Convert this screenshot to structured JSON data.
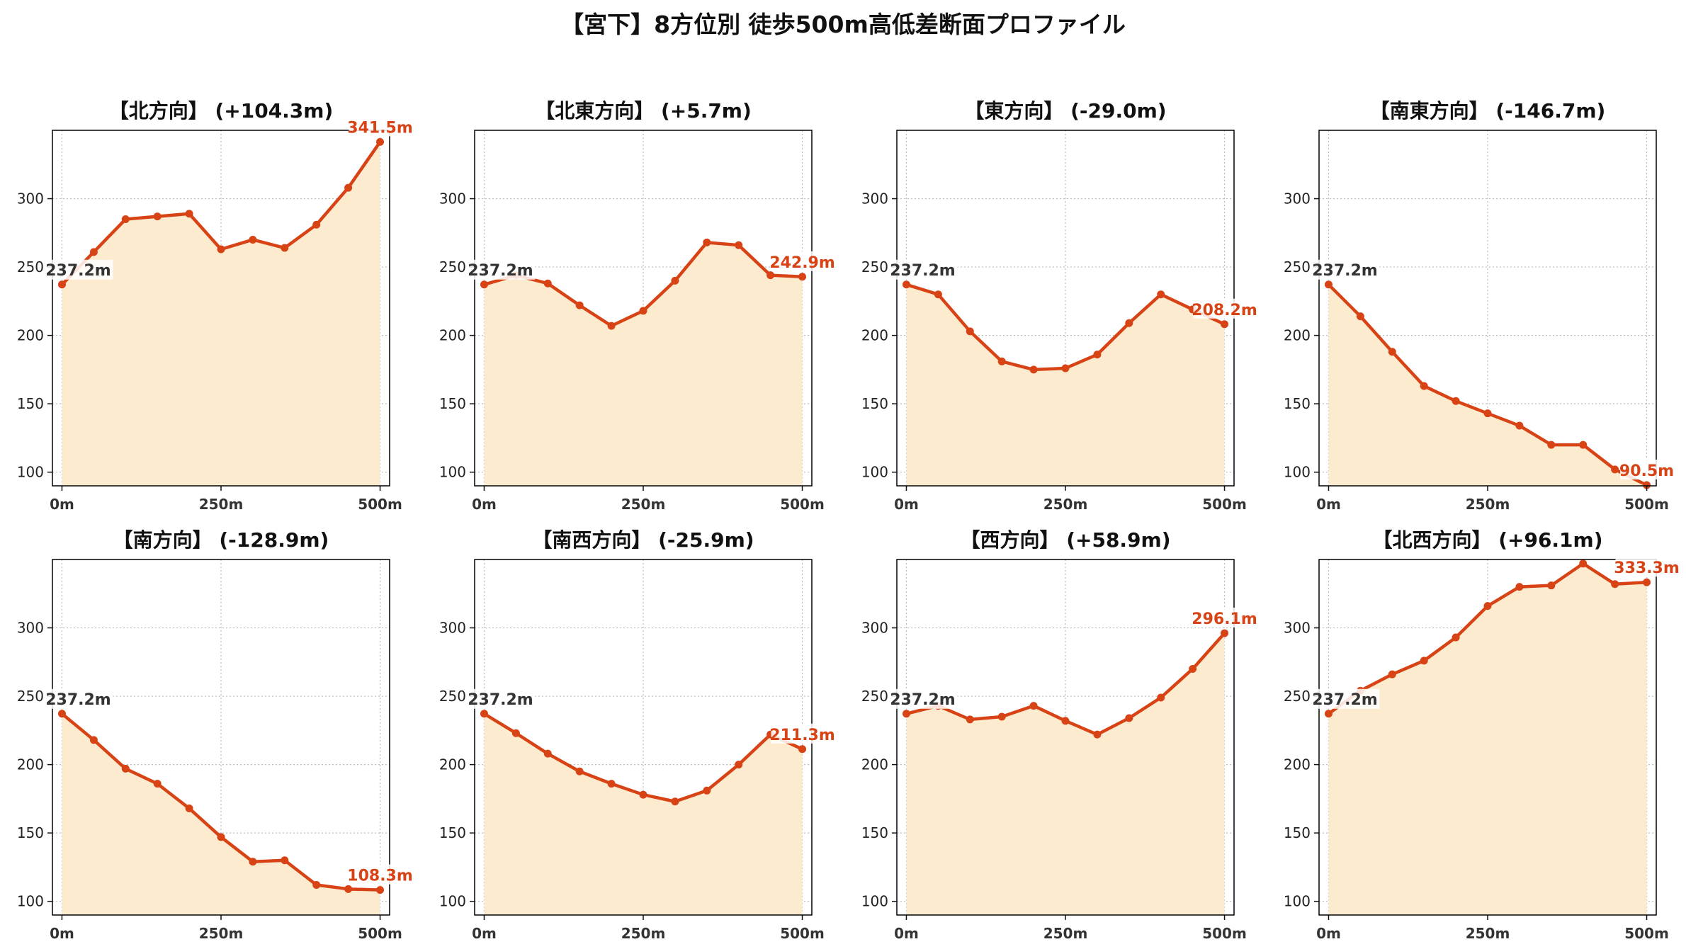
{
  "title": "【宮下】8方位別 徒歩500m高低差断面プロファイル",
  "colors": {
    "line": "#d84315",
    "fill": "#fdebd0",
    "grid": "#bbbbbb",
    "start_label": "#333333",
    "end_label": "#d84315"
  },
  "chart_data": [
    {
      "type": "area",
      "title": "【北方向】 (+104.3m)",
      "x": [
        0,
        50,
        100,
        150,
        200,
        250,
        300,
        350,
        400,
        450,
        500
      ],
      "y": [
        237.2,
        261,
        285,
        287,
        289,
        263,
        270,
        264,
        281,
        308,
        341.5
      ],
      "start_label": "237.2m",
      "end_label": "341.5m",
      "ylim": [
        90,
        350
      ],
      "yticks": [
        100,
        150,
        200,
        250,
        300
      ],
      "xticks": [
        "0m",
        "250m",
        "500m"
      ],
      "grid": true
    },
    {
      "type": "area",
      "title": "【北東方向】 (+5.7m)",
      "x": [
        0,
        50,
        100,
        150,
        200,
        250,
        300,
        350,
        400,
        450,
        500
      ],
      "y": [
        237.2,
        244,
        238,
        222,
        207,
        218,
        240,
        268,
        266,
        244,
        242.9
      ],
      "start_label": "237.2m",
      "end_label": "242.9m",
      "ylim": [
        90,
        350
      ],
      "yticks": [
        100,
        150,
        200,
        250,
        300
      ],
      "xticks": [
        "0m",
        "250m",
        "500m"
      ],
      "grid": true
    },
    {
      "type": "area",
      "title": "【東方向】 (-29.0m)",
      "x": [
        0,
        50,
        100,
        150,
        200,
        250,
        300,
        350,
        400,
        450,
        500
      ],
      "y": [
        237.2,
        230,
        203,
        181,
        175,
        176,
        186,
        209,
        230,
        219,
        208.2
      ],
      "start_label": "237.2m",
      "end_label": "208.2m",
      "ylim": [
        90,
        350
      ],
      "yticks": [
        100,
        150,
        200,
        250,
        300
      ],
      "xticks": [
        "0m",
        "250m",
        "500m"
      ],
      "grid": true
    },
    {
      "type": "area",
      "title": "【南東方向】 (-146.7m)",
      "x": [
        0,
        50,
        100,
        150,
        200,
        250,
        300,
        350,
        400,
        450,
        500
      ],
      "y": [
        237.2,
        214,
        188,
        163,
        152,
        143,
        134,
        120,
        120,
        102,
        90.5
      ],
      "start_label": "237.2m",
      "end_label": "90.5m",
      "ylim": [
        90,
        350
      ],
      "yticks": [
        100,
        150,
        200,
        250,
        300
      ],
      "xticks": [
        "0m",
        "250m",
        "500m"
      ],
      "grid": true
    },
    {
      "type": "area",
      "title": "【南方向】 (-128.9m)",
      "x": [
        0,
        50,
        100,
        150,
        200,
        250,
        300,
        350,
        400,
        450,
        500
      ],
      "y": [
        237.2,
        218,
        197,
        186,
        168,
        147,
        129,
        130,
        112,
        109,
        108.3
      ],
      "start_label": "237.2m",
      "end_label": "108.3m",
      "ylim": [
        90,
        350
      ],
      "yticks": [
        100,
        150,
        200,
        250,
        300
      ],
      "xticks": [
        "0m",
        "250m",
        "500m"
      ],
      "grid": true
    },
    {
      "type": "area",
      "title": "【南西方向】 (-25.9m)",
      "x": [
        0,
        50,
        100,
        150,
        200,
        250,
        300,
        350,
        400,
        450,
        500
      ],
      "y": [
        237.2,
        223,
        208,
        195,
        186,
        178,
        173,
        181,
        200,
        222,
        211.3
      ],
      "start_label": "237.2m",
      "end_label": "211.3m",
      "ylim": [
        90,
        350
      ],
      "yticks": [
        100,
        150,
        200,
        250,
        300
      ],
      "xticks": [
        "0m",
        "250m",
        "500m"
      ],
      "grid": true
    },
    {
      "type": "area",
      "title": "【西方向】 (+58.9m)",
      "x": [
        0,
        50,
        100,
        150,
        200,
        250,
        300,
        350,
        400,
        450,
        500
      ],
      "y": [
        237.2,
        243,
        233,
        235,
        243,
        232,
        222,
        234,
        249,
        270,
        296.1
      ],
      "start_label": "237.2m",
      "end_label": "296.1m",
      "ylim": [
        90,
        350
      ],
      "yticks": [
        100,
        150,
        200,
        250,
        300
      ],
      "xticks": [
        "0m",
        "250m",
        "500m"
      ],
      "grid": true
    },
    {
      "type": "area",
      "title": "【北西方向】 (+96.1m)",
      "x": [
        0,
        50,
        100,
        150,
        200,
        250,
        300,
        350,
        400,
        450,
        500
      ],
      "y": [
        237.2,
        254,
        266,
        276,
        293,
        316,
        330,
        331,
        347,
        332,
        333.3
      ],
      "start_label": "237.2m",
      "end_label": "333.3m",
      "ylim": [
        90,
        350
      ],
      "yticks": [
        100,
        150,
        200,
        250,
        300
      ],
      "xticks": [
        "0m",
        "250m",
        "500m"
      ],
      "grid": true
    }
  ]
}
